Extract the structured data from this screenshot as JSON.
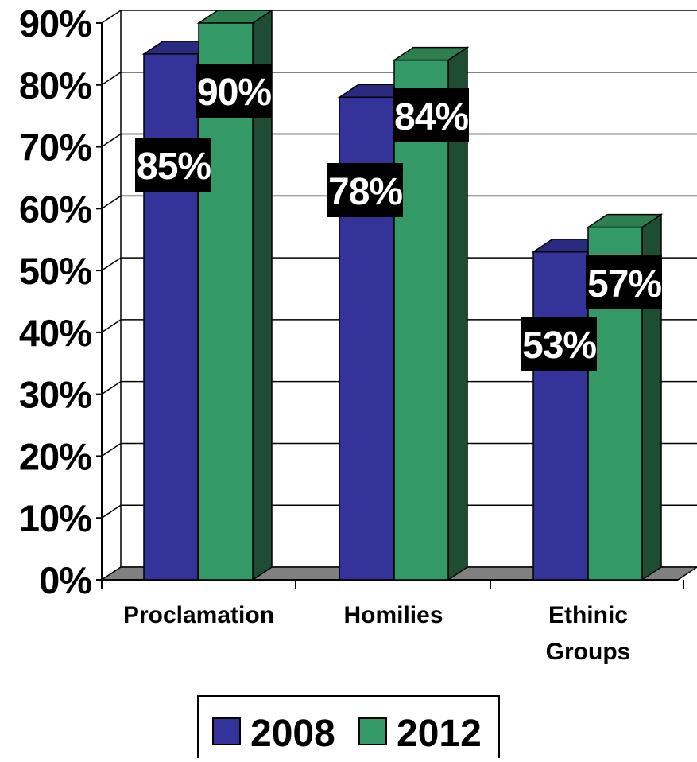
{
  "chart_data": {
    "type": "bar",
    "title": "",
    "xlabel": "",
    "ylabel": "",
    "categories": [
      "Proclamation",
      "Homilies",
      "Ethinic Groups"
    ],
    "category_lines": [
      [
        "Proclamation"
      ],
      [
        "Homilies"
      ],
      [
        "Ethinic",
        "Groups"
      ]
    ],
    "series": [
      {
        "name": "2008",
        "values": [
          85,
          78,
          53
        ],
        "labels": [
          "85%",
          "78%",
          "53%"
        ]
      },
      {
        "name": "2012",
        "values": [
          90,
          84,
          57
        ],
        "labels": [
          "90%",
          "84%",
          "57%"
        ]
      }
    ],
    "yticks": [
      {
        "value": 0,
        "label": "0%"
      },
      {
        "value": 10,
        "label": "10%"
      },
      {
        "value": 20,
        "label": "20%"
      },
      {
        "value": 30,
        "label": "30%"
      },
      {
        "value": 40,
        "label": "40%"
      },
      {
        "value": 50,
        "label": "50%"
      },
      {
        "value": 60,
        "label": "60%"
      },
      {
        "value": 70,
        "label": "70%"
      },
      {
        "value": 80,
        "label": "80%"
      },
      {
        "value": 90,
        "label": "90%"
      }
    ],
    "ylim": [
      0,
      90
    ],
    "grid": true,
    "three_d": true,
    "legend_position": "bottom",
    "colors": {
      "2008_front": "#333399",
      "2008_side": "#1a1a66",
      "2008_top": "#2a2a80",
      "2012_front": "#339966",
      "2012_side": "#1f4d33",
      "2012_top": "#2d7f50",
      "floor": "#808080",
      "label_bg": "#000000",
      "label_text": "#ffffff"
    }
  }
}
